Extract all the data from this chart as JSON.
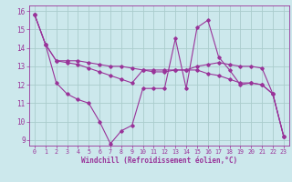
{
  "xlabel": "Windchill (Refroidissement éolien,°C)",
  "bg_color": "#cce8ec",
  "line_color": "#993399",
  "grid_color": "#aacccc",
  "xlim": [
    -0.5,
    23.5
  ],
  "ylim": [
    8.7,
    16.3
  ],
  "yticks": [
    9,
    10,
    11,
    12,
    13,
    14,
    15,
    16
  ],
  "xticks": [
    0,
    1,
    2,
    3,
    4,
    5,
    6,
    7,
    8,
    9,
    10,
    11,
    12,
    13,
    14,
    15,
    16,
    17,
    18,
    19,
    20,
    21,
    22,
    23
  ],
  "series": [
    [
      15.8,
      14.2,
      13.3,
      13.3,
      13.3,
      13.2,
      13.1,
      13.0,
      13.0,
      12.9,
      12.8,
      12.8,
      12.8,
      12.8,
      12.8,
      13.0,
      13.1,
      13.2,
      13.1,
      13.0,
      13.0,
      12.9,
      11.5,
      9.2
    ],
    [
      15.8,
      14.2,
      12.1,
      11.5,
      11.2,
      11.0,
      10.0,
      8.8,
      9.5,
      9.8,
      11.8,
      11.8,
      11.8,
      14.5,
      11.8,
      15.1,
      15.5,
      13.5,
      12.8,
      12.0,
      12.1,
      12.0,
      11.5,
      9.2
    ],
    [
      15.8,
      14.2,
      13.3,
      13.2,
      13.1,
      12.9,
      12.7,
      12.5,
      12.3,
      12.1,
      12.8,
      12.7,
      12.7,
      12.8,
      12.8,
      12.8,
      12.6,
      12.5,
      12.3,
      12.1,
      12.1,
      12.0,
      11.5,
      9.2
    ]
  ]
}
